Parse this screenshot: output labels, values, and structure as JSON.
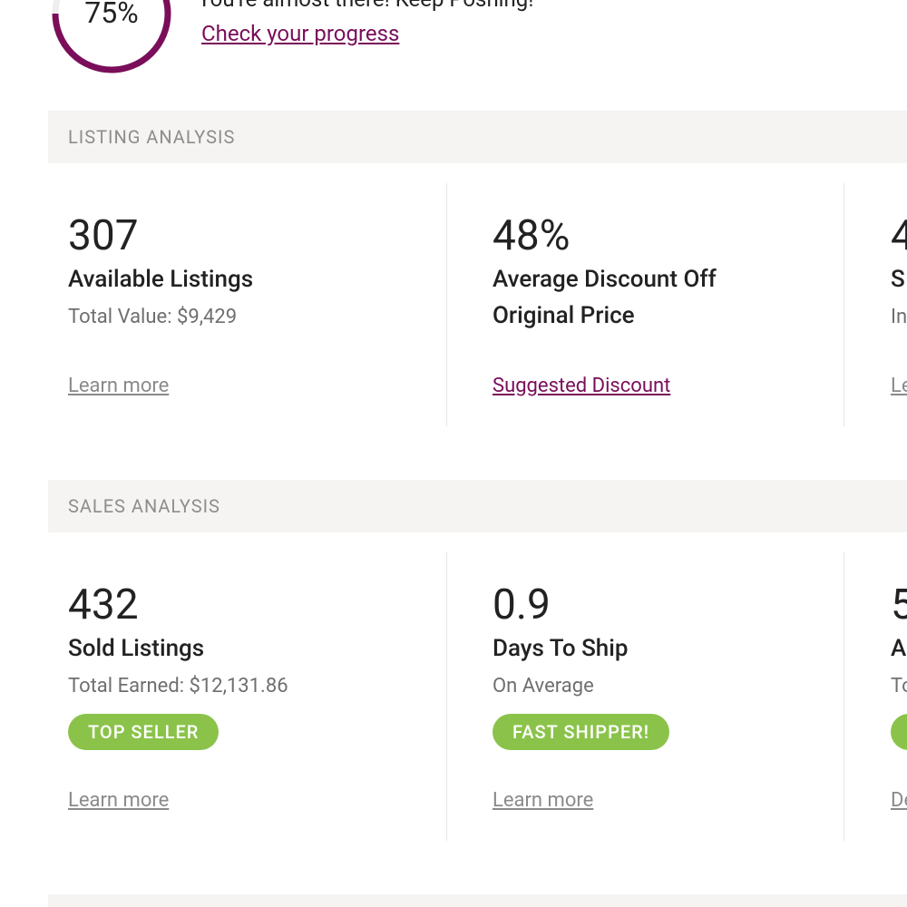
{
  "progress": {
    "value": 75,
    "label": "75%"
  },
  "header": {
    "message": "You're almost there! Keep Poshing!",
    "link": "Check your progress"
  },
  "sections": [
    {
      "title": "LISTING ANALYSIS",
      "cards": [
        {
          "value": "307",
          "title": "Available Listings",
          "detail": "Total Value: $9,429",
          "link": "Learn more"
        },
        {
          "value": "48%",
          "title": "Average Discount Off Original Price",
          "link": "Suggested Discount",
          "link_style": "accent"
        },
        {
          "value": "4",
          "title": "S",
          "detail": "In",
          "link": "Le"
        }
      ]
    },
    {
      "title": "SALES ANALYSIS",
      "cards": [
        {
          "value": "432",
          "title": "Sold Listings",
          "detail": "Total Earned: $12,131.86",
          "badge": "TOP SELLER",
          "link": "Learn more"
        },
        {
          "value": "0.9",
          "title": "Days To Ship",
          "detail": "On Average",
          "badge": "FAST SHIPPER!",
          "link": "Learn more"
        },
        {
          "value": "5",
          "title": "A",
          "detail": "To",
          "badge_partial": true,
          "link": "De"
        }
      ]
    }
  ]
}
